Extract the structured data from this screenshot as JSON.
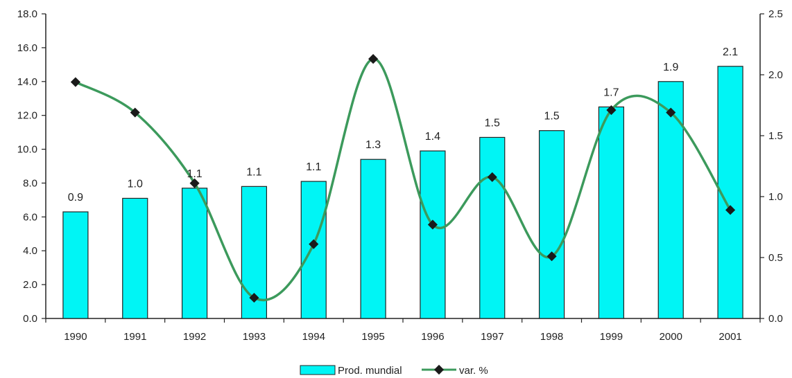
{
  "chart_data": {
    "type": "bar",
    "categories": [
      "1990",
      "1991",
      "1992",
      "1993",
      "1994",
      "1995",
      "1996",
      "1997",
      "1998",
      "1999",
      "2000",
      "2001"
    ],
    "series": [
      {
        "name": "Prod. mundial",
        "type": "bar",
        "axis": "left",
        "values": [
          6.3,
          7.1,
          7.7,
          7.8,
          8.1,
          9.4,
          9.9,
          10.7,
          11.1,
          12.5,
          14.0,
          14.9
        ],
        "data_labels": [
          "0.9",
          "1.0",
          "1.1",
          "1.1",
          "1.1",
          "1.3",
          "1.4",
          "1.5",
          "1.5",
          "1.7",
          "1.9",
          "2.1"
        ],
        "color": "#00f5f5"
      },
      {
        "name": "var. %",
        "type": "line",
        "axis": "right",
        "values": [
          1.94,
          1.69,
          1.11,
          0.17,
          0.61,
          2.13,
          0.77,
          1.16,
          0.51,
          1.71,
          1.69,
          0.89
        ],
        "color": "#3c9a5c",
        "marker_color": "#1a1a1a"
      }
    ],
    "y_left": {
      "ylim": [
        0,
        18
      ],
      "ticks": [
        "0.0",
        "2.0",
        "4.0",
        "6.0",
        "8.0",
        "10.0",
        "12.0",
        "14.0",
        "16.0",
        "18.0"
      ]
    },
    "y_right": {
      "ylim": [
        0,
        2.5
      ],
      "ticks": [
        "0.0",
        "0.5",
        "1.0",
        "1.5",
        "2.0",
        "2.5"
      ]
    },
    "title": "",
    "xlabel": "",
    "ylabel": "",
    "grid": false,
    "legend": {
      "position": "bottom-center",
      "entries": [
        "Prod. mundial",
        "var. %"
      ]
    }
  }
}
